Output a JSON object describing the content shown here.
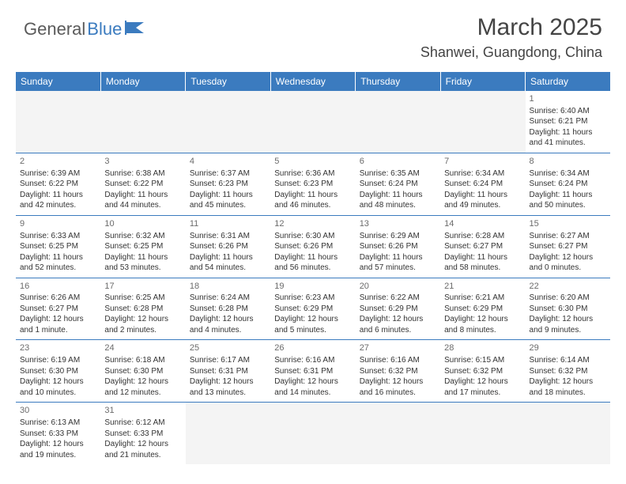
{
  "logo": {
    "general": "General",
    "blue": "Blue"
  },
  "title": "March 2025",
  "location": "Shanwei, Guangdong, China",
  "header_bg": "#3b7bbf",
  "header_text_color": "#ffffff",
  "day_headers": [
    "Sunday",
    "Monday",
    "Tuesday",
    "Wednesday",
    "Thursday",
    "Friday",
    "Saturday"
  ],
  "weeks": [
    [
      null,
      null,
      null,
      null,
      null,
      null,
      {
        "n": "1",
        "sr": "Sunrise: 6:40 AM",
        "ss": "Sunset: 6:21 PM",
        "dl": "Daylight: 11 hours and 41 minutes."
      }
    ],
    [
      {
        "n": "2",
        "sr": "Sunrise: 6:39 AM",
        "ss": "Sunset: 6:22 PM",
        "dl": "Daylight: 11 hours and 42 minutes."
      },
      {
        "n": "3",
        "sr": "Sunrise: 6:38 AM",
        "ss": "Sunset: 6:22 PM",
        "dl": "Daylight: 11 hours and 44 minutes."
      },
      {
        "n": "4",
        "sr": "Sunrise: 6:37 AM",
        "ss": "Sunset: 6:23 PM",
        "dl": "Daylight: 11 hours and 45 minutes."
      },
      {
        "n": "5",
        "sr": "Sunrise: 6:36 AM",
        "ss": "Sunset: 6:23 PM",
        "dl": "Daylight: 11 hours and 46 minutes."
      },
      {
        "n": "6",
        "sr": "Sunrise: 6:35 AM",
        "ss": "Sunset: 6:24 PM",
        "dl": "Daylight: 11 hours and 48 minutes."
      },
      {
        "n": "7",
        "sr": "Sunrise: 6:34 AM",
        "ss": "Sunset: 6:24 PM",
        "dl": "Daylight: 11 hours and 49 minutes."
      },
      {
        "n": "8",
        "sr": "Sunrise: 6:34 AM",
        "ss": "Sunset: 6:24 PM",
        "dl": "Daylight: 11 hours and 50 minutes."
      }
    ],
    [
      {
        "n": "9",
        "sr": "Sunrise: 6:33 AM",
        "ss": "Sunset: 6:25 PM",
        "dl": "Daylight: 11 hours and 52 minutes."
      },
      {
        "n": "10",
        "sr": "Sunrise: 6:32 AM",
        "ss": "Sunset: 6:25 PM",
        "dl": "Daylight: 11 hours and 53 minutes."
      },
      {
        "n": "11",
        "sr": "Sunrise: 6:31 AM",
        "ss": "Sunset: 6:26 PM",
        "dl": "Daylight: 11 hours and 54 minutes."
      },
      {
        "n": "12",
        "sr": "Sunrise: 6:30 AM",
        "ss": "Sunset: 6:26 PM",
        "dl": "Daylight: 11 hours and 56 minutes."
      },
      {
        "n": "13",
        "sr": "Sunrise: 6:29 AM",
        "ss": "Sunset: 6:26 PM",
        "dl": "Daylight: 11 hours and 57 minutes."
      },
      {
        "n": "14",
        "sr": "Sunrise: 6:28 AM",
        "ss": "Sunset: 6:27 PM",
        "dl": "Daylight: 11 hours and 58 minutes."
      },
      {
        "n": "15",
        "sr": "Sunrise: 6:27 AM",
        "ss": "Sunset: 6:27 PM",
        "dl": "Daylight: 12 hours and 0 minutes."
      }
    ],
    [
      {
        "n": "16",
        "sr": "Sunrise: 6:26 AM",
        "ss": "Sunset: 6:27 PM",
        "dl": "Daylight: 12 hours and 1 minute."
      },
      {
        "n": "17",
        "sr": "Sunrise: 6:25 AM",
        "ss": "Sunset: 6:28 PM",
        "dl": "Daylight: 12 hours and 2 minutes."
      },
      {
        "n": "18",
        "sr": "Sunrise: 6:24 AM",
        "ss": "Sunset: 6:28 PM",
        "dl": "Daylight: 12 hours and 4 minutes."
      },
      {
        "n": "19",
        "sr": "Sunrise: 6:23 AM",
        "ss": "Sunset: 6:29 PM",
        "dl": "Daylight: 12 hours and 5 minutes."
      },
      {
        "n": "20",
        "sr": "Sunrise: 6:22 AM",
        "ss": "Sunset: 6:29 PM",
        "dl": "Daylight: 12 hours and 6 minutes."
      },
      {
        "n": "21",
        "sr": "Sunrise: 6:21 AM",
        "ss": "Sunset: 6:29 PM",
        "dl": "Daylight: 12 hours and 8 minutes."
      },
      {
        "n": "22",
        "sr": "Sunrise: 6:20 AM",
        "ss": "Sunset: 6:30 PM",
        "dl": "Daylight: 12 hours and 9 minutes."
      }
    ],
    [
      {
        "n": "23",
        "sr": "Sunrise: 6:19 AM",
        "ss": "Sunset: 6:30 PM",
        "dl": "Daylight: 12 hours and 10 minutes."
      },
      {
        "n": "24",
        "sr": "Sunrise: 6:18 AM",
        "ss": "Sunset: 6:30 PM",
        "dl": "Daylight: 12 hours and 12 minutes."
      },
      {
        "n": "25",
        "sr": "Sunrise: 6:17 AM",
        "ss": "Sunset: 6:31 PM",
        "dl": "Daylight: 12 hours and 13 minutes."
      },
      {
        "n": "26",
        "sr": "Sunrise: 6:16 AM",
        "ss": "Sunset: 6:31 PM",
        "dl": "Daylight: 12 hours and 14 minutes."
      },
      {
        "n": "27",
        "sr": "Sunrise: 6:16 AM",
        "ss": "Sunset: 6:32 PM",
        "dl": "Daylight: 12 hours and 16 minutes."
      },
      {
        "n": "28",
        "sr": "Sunrise: 6:15 AM",
        "ss": "Sunset: 6:32 PM",
        "dl": "Daylight: 12 hours and 17 minutes."
      },
      {
        "n": "29",
        "sr": "Sunrise: 6:14 AM",
        "ss": "Sunset: 6:32 PM",
        "dl": "Daylight: 12 hours and 18 minutes."
      }
    ],
    [
      {
        "n": "30",
        "sr": "Sunrise: 6:13 AM",
        "ss": "Sunset: 6:33 PM",
        "dl": "Daylight: 12 hours and 19 minutes."
      },
      {
        "n": "31",
        "sr": "Sunrise: 6:12 AM",
        "ss": "Sunset: 6:33 PM",
        "dl": "Daylight: 12 hours and 21 minutes."
      },
      null,
      null,
      null,
      null,
      null
    ]
  ]
}
